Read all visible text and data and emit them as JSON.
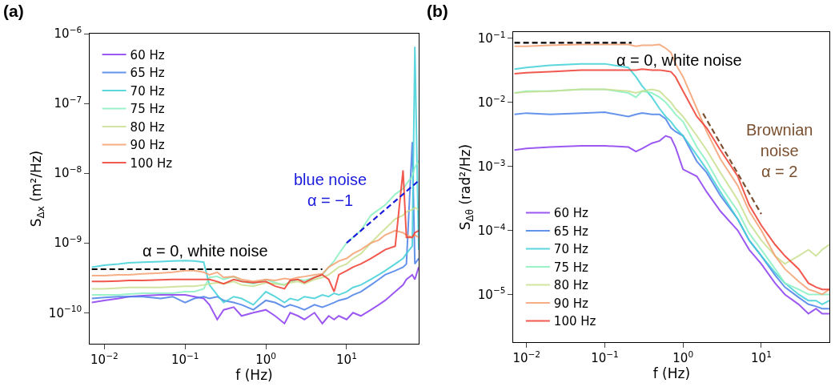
{
  "chart_data": [
    {
      "type": "line",
      "title": "(a)",
      "xlabel": "f (Hz)",
      "ylabel": "S$_{Δx}$ (m²/Hz)",
      "log": "xy",
      "legend": "top left",
      "xlim": [
        0.0066,
        78
      ],
      "ylim": [
        3.6e-11,
        1e-06
      ],
      "xticks": [
        {
          "value": 0.01,
          "label": "10$^{−2}$"
        },
        {
          "value": 0.1,
          "label": "10$^{−1}$"
        },
        {
          "value": 1,
          "label": "10$^{0}$"
        },
        {
          "value": 10,
          "label": "10$^{1}$"
        }
      ],
      "yticks": [
        {
          "value": 1e-10,
          "label": "10$^{−10}$"
        },
        {
          "value": 1e-09,
          "label": "10$^{−9}$"
        },
        {
          "value": 1e-08,
          "label": "10$^{−8}$"
        },
        {
          "value": 1e-07,
          "label": "10$^{−7}$"
        },
        {
          "value": 1e-06,
          "label": "10$^{−6}$"
        }
      ],
      "x": [
        0.007,
        0.01,
        0.015,
        0.02,
        0.03,
        0.05,
        0.07,
        0.1,
        0.13,
        0.17,
        0.2,
        0.25,
        0.3,
        0.4,
        0.5,
        0.7,
        1,
        1.3,
        1.7,
        2,
        2.5,
        3,
        4,
        5,
        6,
        7,
        8,
        10,
        12,
        15,
        20,
        25,
        30,
        40,
        50,
        55,
        65,
        70,
        78
      ],
      "series": [
        {
          "name": "60 Hz",
          "color": "#8b3cf0",
          "values": [
            1.4e-10,
            1.5e-10,
            1.6e-10,
            1.7e-10,
            1.75e-10,
            1.8e-10,
            1.8e-10,
            1.8e-10,
            1.7e-10,
            1.6e-10,
            1.3e-10,
            8e-11,
            1.1e-10,
            1.2e-10,
            9e-11,
            1e-10,
            1.1e-10,
            9e-11,
            7e-11,
            1e-10,
            9e-11,
            8e-11,
            1e-10,
            7e-11,
            9e-11,
            8e-11,
            9e-11,
            8e-11,
            1e-10,
            9e-11,
            1.1e-10,
            1.3e-10,
            1.5e-10,
            2e-10,
            2.5e-10,
            3e-10,
            3.5e-10,
            3e-10,
            4.5e-10
          ]
        },
        {
          "name": "65 Hz",
          "color": "#4a80e8",
          "values": [
            1.6e-10,
            1.65e-10,
            1.7e-10,
            1.7e-10,
            1.7e-10,
            1.6e-10,
            1.7e-10,
            1.4e-10,
            1.6e-10,
            1.7e-10,
            1.6e-10,
            1.7e-10,
            1.5e-10,
            1.4e-10,
            1.3e-10,
            1.1e-10,
            1.5e-10,
            1.4e-10,
            1.2e-10,
            1.3e-10,
            1.2e-10,
            1.1e-10,
            1.3e-10,
            1.2e-10,
            1.3e-10,
            1.4e-10,
            1.5e-10,
            1.6e-10,
            1.8e-10,
            2e-10,
            2.5e-10,
            3e-10,
            3.5e-10,
            4e-10,
            4.5e-10,
            5e-10,
            2.8e-08,
            5e-10,
            6e-10
          ]
        },
        {
          "name": "70 Hz",
          "color": "#40d0d8",
          "values": [
            4.5e-10,
            4.8e-10,
            5e-10,
            5.2e-10,
            5.3e-10,
            5.4e-10,
            5.5e-10,
            5.6e-10,
            5.5e-10,
            5.3e-10,
            2.5e-10,
            1.8e-10,
            1.4e-10,
            1.7e-10,
            1.6e-10,
            1.3e-10,
            2e-10,
            1.7e-10,
            1.4e-10,
            1.6e-10,
            1.5e-10,
            1.7e-10,
            1.6e-10,
            1.8e-10,
            1.7e-10,
            1.9e-10,
            1.8e-10,
            2e-10,
            2.3e-10,
            2.5e-10,
            3e-10,
            3.5e-10,
            4e-10,
            5e-10,
            6e-10,
            7e-10,
            9e-10,
            6.5e-07,
            8e-10
          ]
        },
        {
          "name": "75 Hz",
          "color": "#88f0c0",
          "values": [
            1.8e-10,
            1.8e-10,
            1.8e-10,
            1.85e-10,
            1.9e-10,
            1.9e-10,
            1.9e-10,
            2e-10,
            2e-10,
            2.2e-10,
            3.2e-10,
            3.3e-10,
            3e-10,
            3.3e-10,
            2.8e-10,
            2.6e-10,
            3e-10,
            2.7e-10,
            2.5e-10,
            2.8e-10,
            3e-10,
            2.9e-10,
            3.2e-10,
            3.5e-10,
            4.5e-10,
            5.5e-10,
            7e-10,
            1e-09,
            1.2e-09,
            1.5e-09,
            2.5e-09,
            3e-09,
            3.5e-09,
            5e-09,
            6e-09,
            7e-09,
            9e-09,
            1.2e-08,
            1.5e-08
          ]
        },
        {
          "name": "80 Hz",
          "color": "#c8e090",
          "values": [
            2.2e-10,
            2.2e-10,
            2.25e-10,
            2.3e-10,
            2.3e-10,
            2.3e-10,
            2.35e-10,
            2.4e-10,
            2.4e-10,
            2.5e-10,
            2.6e-10,
            2.7e-10,
            2.6e-10,
            2.8e-10,
            2.5e-10,
            2.4e-10,
            2.7e-10,
            2.6e-10,
            2.5e-10,
            2.7e-10,
            2.8e-10,
            2.6e-10,
            3e-10,
            3.2e-10,
            3.5e-10,
            4e-10,
            4.5e-10,
            5e-10,
            6e-10,
            7e-10,
            1e-09,
            1.3e-09,
            1.6e-09,
            2.2e-09,
            2.5e-09,
            2.8e-09,
            3e-09,
            3.2e-09,
            3e-09
          ]
        },
        {
          "name": "90 Hz",
          "color": "#f4a070",
          "values": [
            3.4e-10,
            3.4e-10,
            3.5e-10,
            3.5e-10,
            3.6e-10,
            3.7e-10,
            3.8e-10,
            4e-10,
            4e-10,
            3.8e-10,
            3.5e-10,
            3.8e-10,
            3.2e-10,
            3.3e-10,
            3e-10,
            2.8e-10,
            3e-10,
            2.9e-10,
            3.1e-10,
            3e-10,
            3.2e-10,
            3.3e-10,
            3.5e-10,
            3.6e-10,
            4.5e-10,
            5e-10,
            5.5e-10,
            6e-10,
            7e-10,
            8e-10,
            1e-09,
            1.1e-09,
            1.3e-09,
            1.5e-09,
            1.4e-09,
            1.3e-09,
            1.2e-09,
            1.3e-09,
            1.2e-09
          ]
        },
        {
          "name": "100 Hz",
          "color": "#f03c30",
          "values": [
            2.8e-10,
            2.8e-10,
            2.85e-10,
            2.9e-10,
            2.9e-10,
            2.95e-10,
            3e-10,
            3e-10,
            3e-10,
            3e-10,
            3e-10,
            2.8e-10,
            2.6e-10,
            3e-10,
            2.8e-10,
            2.7e-10,
            2.8e-10,
            2.4e-10,
            2.2e-10,
            2.9e-10,
            3e-10,
            2.7e-10,
            3.2e-10,
            3.5e-10,
            3e-10,
            2e-10,
            3.5e-10,
            4e-10,
            4.5e-10,
            5e-10,
            6e-10,
            7e-10,
            8e-10,
            9e-10,
            1.1e-08,
            1.2e-09,
            1.2e-09,
            1.4e-09,
            1.5e-09
          ]
        },
        {
          "color": "#000000",
          "line_style": "dashed",
          "x": [
            0.007,
            5
          ],
          "values": [
            4.2e-10,
            4.2e-10
          ]
        },
        {
          "color": "#1a1adc",
          "line_style": "dashed",
          "x": [
            10,
            78
          ],
          "values": [
            1e-09,
            7.8e-09
          ]
        }
      ],
      "annotations": [
        "α = 0, white noise",
        "blue noise\nα = −1"
      ]
    },
    {
      "type": "line",
      "title": "(b)",
      "xlabel": "f (Hz)",
      "ylabel": "S$_{Δθ}$ (rad²/Hz)",
      "log": "xy",
      "legend": "bottom left",
      "xlim": [
        0.0068,
        75
      ],
      "ylim": [
        1.8e-06,
        0.125
      ],
      "xticks": [
        {
          "value": 0.01,
          "label": "10$^{−2}$"
        },
        {
          "value": 0.1,
          "label": "10$^{−1}$"
        },
        {
          "value": 1,
          "label": "10$^{0}$"
        },
        {
          "value": 10,
          "label": "10$^{1}$"
        }
      ],
      "yticks": [
        {
          "value": 1e-05,
          "label": "10$^{−5}$"
        },
        {
          "value": 0.0001,
          "label": "10$^{−4}$"
        },
        {
          "value": 0.001,
          "label": "10$^{−3}$"
        },
        {
          "value": 0.01,
          "label": "10$^{−2}$"
        },
        {
          "value": 0.1,
          "label": "10$^{−1}$"
        }
      ],
      "x": [
        0.007,
        0.01,
        0.02,
        0.05,
        0.1,
        0.2,
        0.25,
        0.3,
        0.4,
        0.5,
        0.6,
        0.7,
        0.8,
        1,
        1.5,
        2,
        3,
        5,
        7,
        10,
        15,
        20,
        30,
        40,
        50,
        60,
        74
      ],
      "series": [
        {
          "name": "60 Hz",
          "color": "#8b3cf0",
          "values": [
            0.0018,
            0.0019,
            0.002,
            0.0021,
            0.0021,
            0.002,
            0.0017,
            0.0019,
            0.0023,
            0.0025,
            0.003,
            0.0028,
            0.002,
            0.0009,
            0.0007,
            0.0004,
            0.0002,
            0.0001,
            5e-05,
            3e-05,
            1.5e-05,
            1e-05,
            7e-06,
            5e-06,
            6e-06,
            5e-06,
            5e-06
          ]
        },
        {
          "name": "65 Hz",
          "color": "#4a80e8",
          "values": [
            0.0065,
            0.0068,
            0.0065,
            0.0068,
            0.007,
            0.006,
            0.0065,
            0.0068,
            0.0065,
            0.0065,
            0.0055,
            0.004,
            0.0035,
            0.003,
            0.0012,
            0.0008,
            0.00035,
            0.00015,
            7e-05,
            4e-05,
            2e-05,
            1.3e-05,
            9e-06,
            7e-06,
            6.5e-06,
            6e-06,
            6e-06
          ]
        },
        {
          "name": "70 Hz",
          "color": "#40d0d8",
          "values": [
            0.033,
            0.035,
            0.038,
            0.04,
            0.04,
            0.035,
            0.025,
            0.018,
            0.012,
            0.008,
            0.006,
            0.005,
            0.004,
            0.003,
            0.0015,
            0.0009,
            0.0004,
            0.00015,
            7e-05,
            4e-05,
            2.2e-05,
            1.5e-05,
            1e-05,
            8e-06,
            8e-06,
            7e-06,
            8e-06
          ]
        },
        {
          "name": "75 Hz",
          "color": "#88f0c0",
          "values": [
            0.014,
            0.015,
            0.015,
            0.016,
            0.016,
            0.014,
            0.012,
            0.015,
            0.014,
            0.012,
            0.01,
            0.008,
            0.0065,
            0.005,
            0.002,
            0.0012,
            0.0005,
            0.0002,
            9e-05,
            5e-05,
            2.5e-05,
            1.5e-05,
            1.2e-05,
            1e-05,
            1e-05,
            1e-05,
            1e-05
          ]
        },
        {
          "name": "80 Hz",
          "color": "#c8e090",
          "values": [
            0.014,
            0.0145,
            0.015,
            0.016,
            0.016,
            0.015,
            0.014,
            0.015,
            0.016,
            0.015,
            0.012,
            0.01,
            0.008,
            0.006,
            0.003,
            0.0018,
            0.0008,
            0.0003,
            0.00013,
            7e-05,
            4e-05,
            3e-05,
            4e-05,
            5e-05,
            4e-05,
            5e-05,
            6e-05
          ]
        },
        {
          "name": "90 Hz",
          "color": "#f4a070",
          "values": [
            0.075,
            0.075,
            0.078,
            0.08,
            0.08,
            0.08,
            0.075,
            0.078,
            0.078,
            0.08,
            0.07,
            0.06,
            0.04,
            0.025,
            0.008,
            0.0035,
            0.0013,
            0.0005,
            0.0002,
            0.0001,
            4e-05,
            2.5e-05,
            1.6e-05,
            1.2e-05,
            1.1e-05,
            1e-05,
            1.2e-05
          ]
        },
        {
          "name": "100 Hz",
          "color": "#f03c30",
          "values": [
            0.028,
            0.029,
            0.03,
            0.032,
            0.032,
            0.032,
            0.032,
            0.033,
            0.032,
            0.032,
            0.031,
            0.03,
            0.025,
            0.015,
            0.006,
            0.004,
            0.0018,
            0.0007,
            0.00025,
            0.00012,
            6e-05,
            4e-05,
            2.5e-05,
            1.5e-05,
            1.3e-05,
            1.2e-05,
            1.2e-05
          ]
        },
        {
          "color": "#000000",
          "line_style": "dashed",
          "x": [
            0.007,
            0.22
          ],
          "values": [
            0.085,
            0.085
          ]
        },
        {
          "color": "#7a5030",
          "line_style": "dashed",
          "x": [
            1.8,
            10
          ],
          "values": [
            0.0067,
            0.00018
          ]
        }
      ],
      "annotations": [
        "α = 0, white noise",
        "Brownian\nnoise\nα = 2"
      ]
    }
  ]
}
